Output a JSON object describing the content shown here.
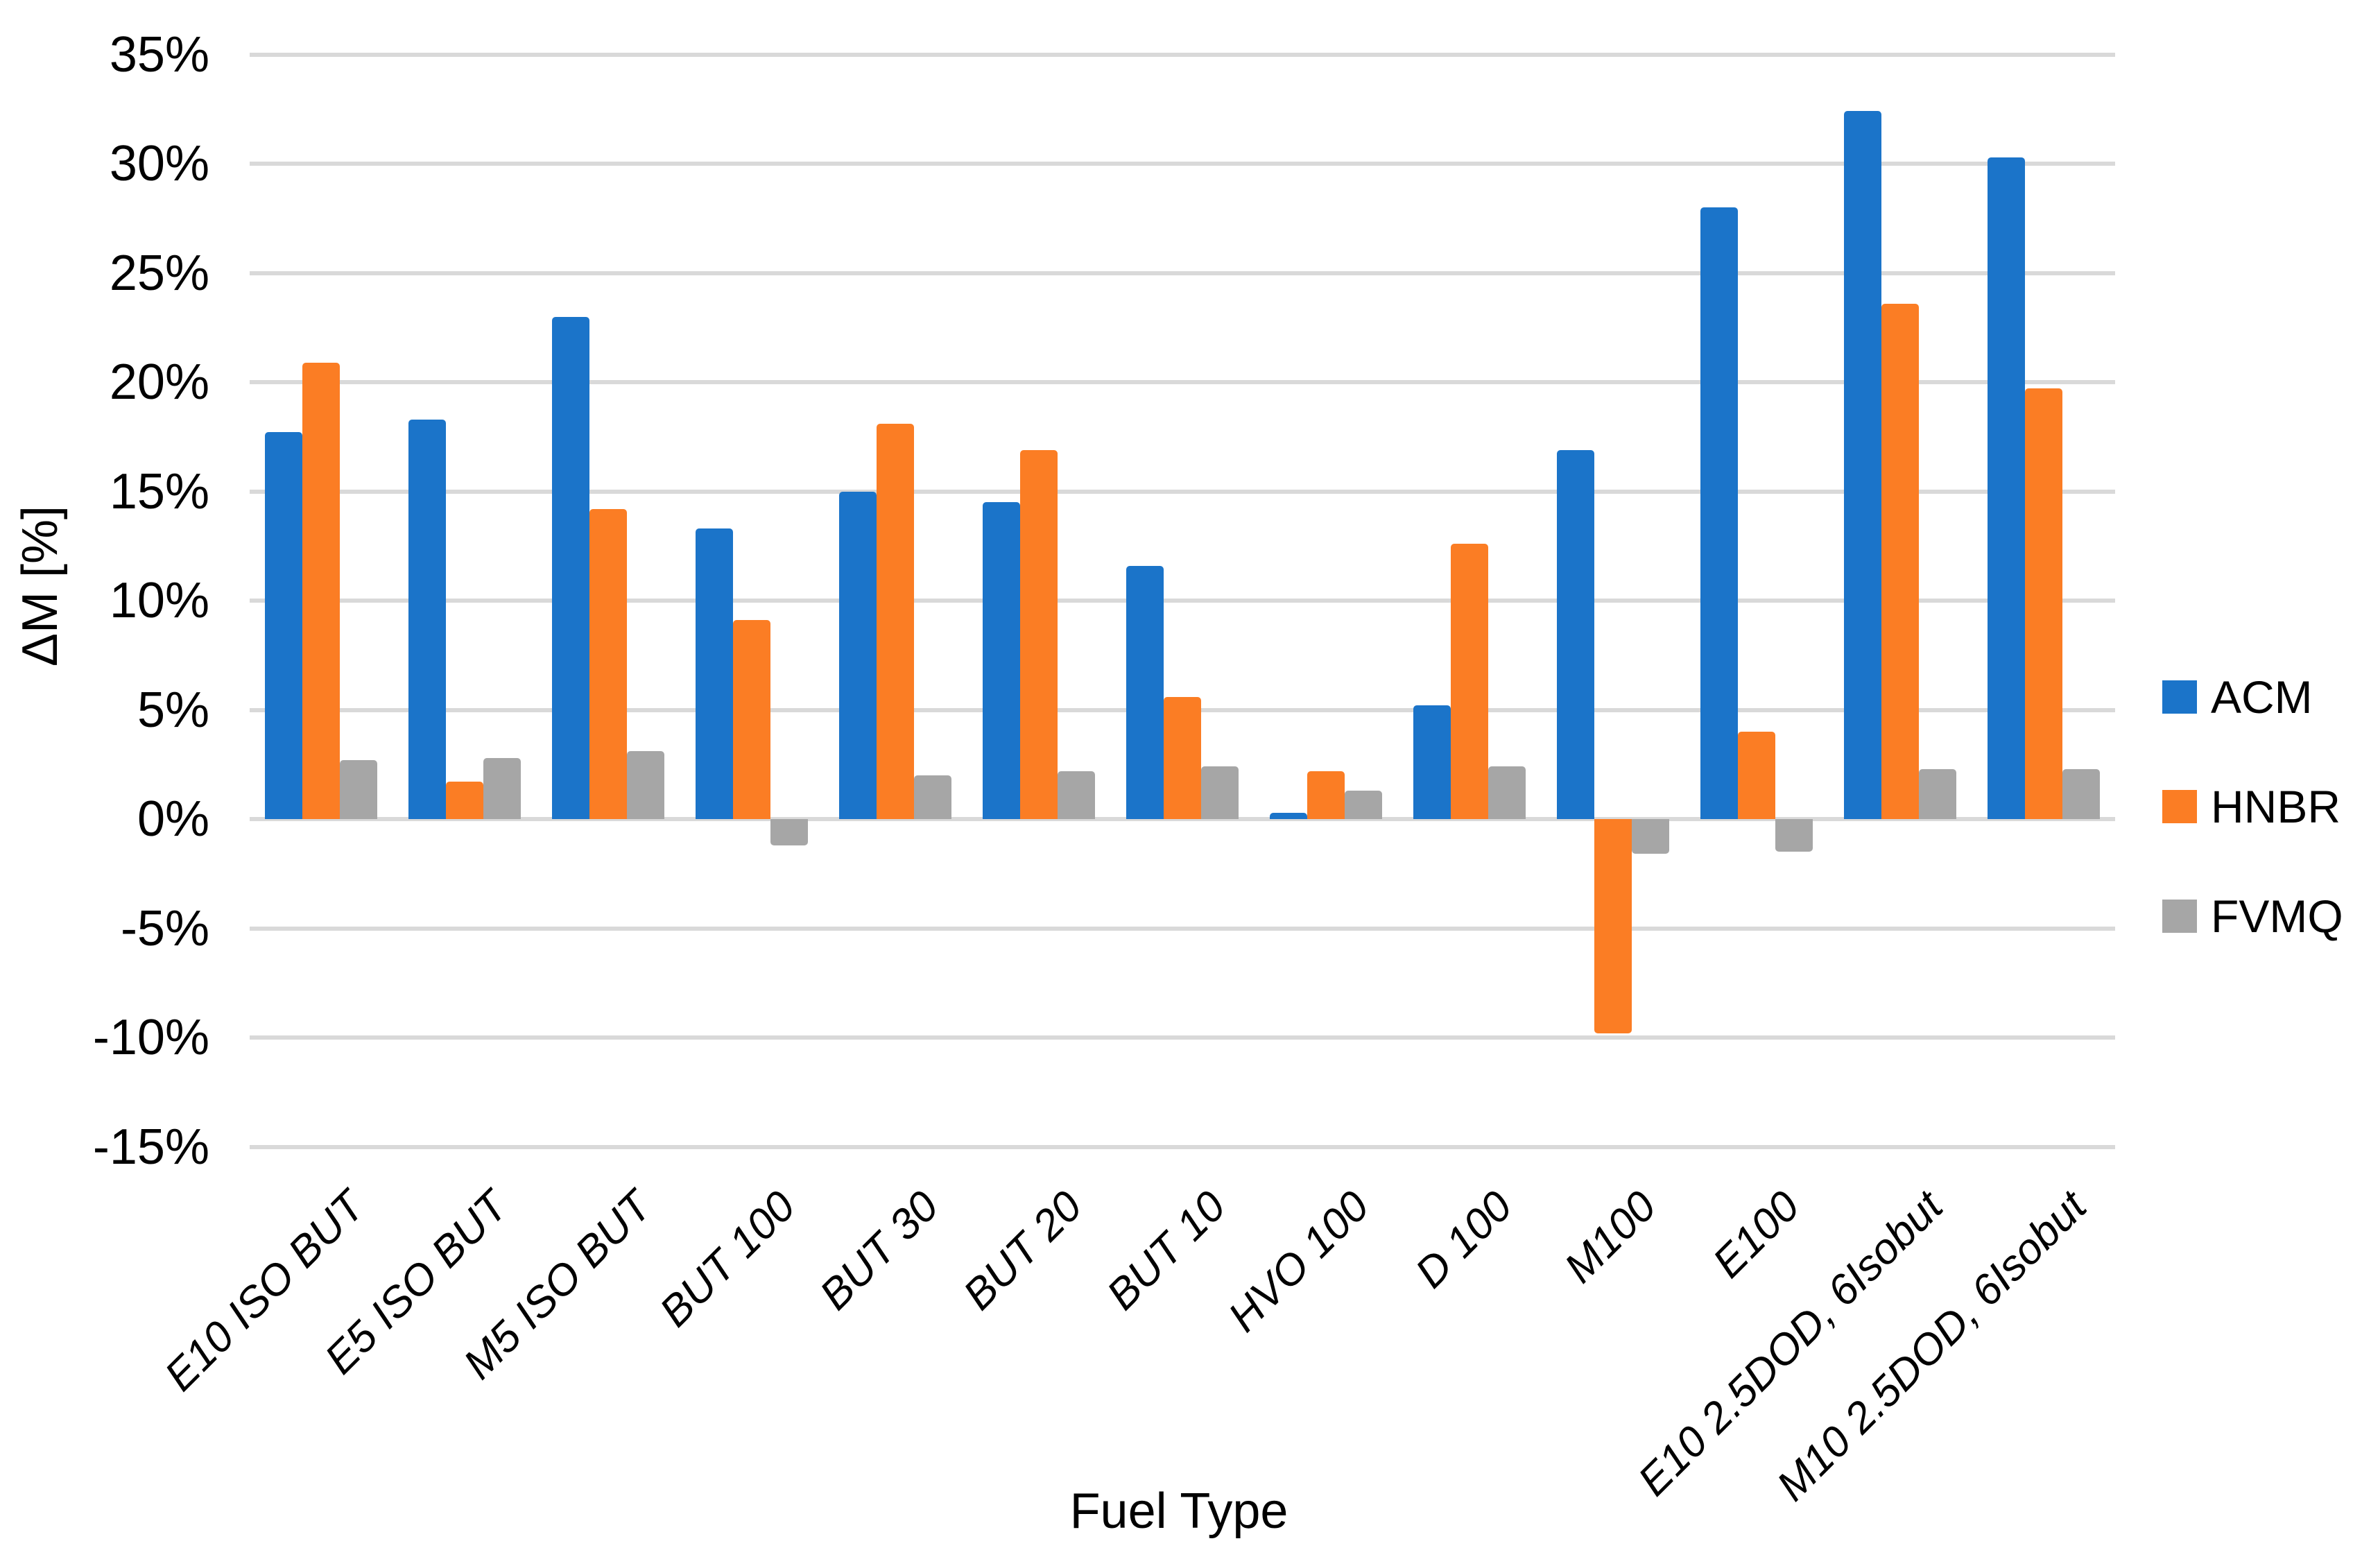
{
  "chart_data": {
    "type": "bar",
    "title": "",
    "xlabel": "Fuel Type",
    "ylabel": "ΔM [%]",
    "categories": [
      "E10 ISO BUT",
      "E5 ISO BUT",
      "M5 ISO BUT",
      "BUT 100",
      "BUT 30",
      "BUT 20",
      "BUT 10",
      "HVO 100",
      "D 100",
      "M100",
      "E100",
      "E10 2.5DOD, 6Isobut",
      "M10 2.5DOD, 6Isobut"
    ],
    "series": [
      {
        "name": "ACM",
        "color": "#1B74C9",
        "values": [
          17.7,
          18.3,
          23.0,
          13.3,
          15.0,
          14.5,
          11.6,
          0.3,
          5.2,
          16.9,
          28.0,
          32.4,
          30.3
        ]
      },
      {
        "name": "HNBR",
        "color": "#FB7D24",
        "values": [
          20.9,
          1.7,
          14.2,
          9.1,
          18.1,
          16.9,
          5.6,
          2.2,
          12.6,
          -9.8,
          4.0,
          23.6,
          19.7
        ]
      },
      {
        "name": "FVMQ",
        "color": "#A6A6A6",
        "values": [
          2.7,
          2.8,
          3.1,
          -1.2,
          2.0,
          2.2,
          2.4,
          1.3,
          2.4,
          -1.6,
          -1.5,
          2.3,
          2.3
        ]
      }
    ],
    "ylim": [
      -15,
      35
    ],
    "ytick_step": 5,
    "ytick_labels": [
      "35%",
      "30%",
      "25%",
      "20%",
      "15%",
      "10%",
      "5%",
      "0%",
      "-5%",
      "-10%",
      "-15%"
    ],
    "grid": true,
    "legend_position": "right"
  },
  "axes": {
    "y_title": "ΔM [%]",
    "x_title": "Fuel Type"
  },
  "legend": {
    "items": [
      {
        "label": "ACM",
        "color": "#1B74C9"
      },
      {
        "label": "HNBR",
        "color": "#FB7D24"
      },
      {
        "label": "FVMQ",
        "color": "#A6A6A6"
      }
    ]
  },
  "colors": {
    "background": "#FFFFFF",
    "gridline": "#D9D9D9",
    "text": "#000000"
  }
}
